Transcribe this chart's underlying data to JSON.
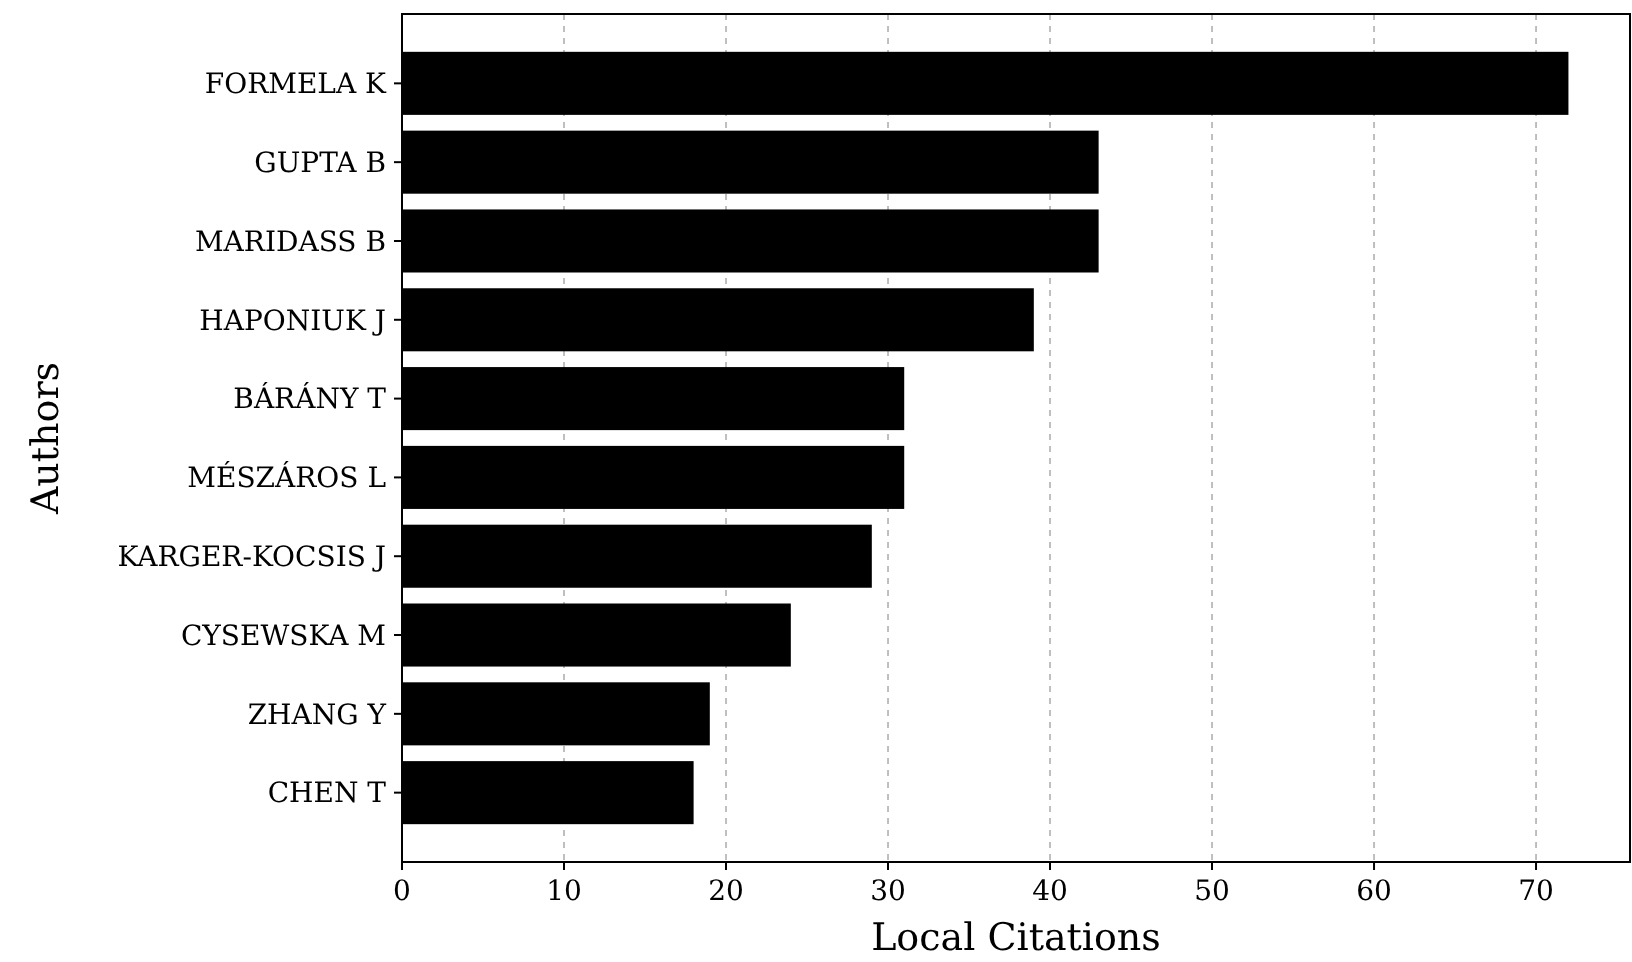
{
  "chart_data": {
    "type": "bar",
    "orientation": "horizontal",
    "xlabel": "Local Citations",
    "ylabel": "Authors",
    "categories": [
      "FORMELA K",
      "GUPTA B",
      "MARIDASS B",
      "HAPONIUK J",
      "BÁRÁNY T",
      "MÉSZÁROS L",
      "KARGER-KOCSIS J",
      "CYSEWSKA M",
      "ZHANG Y",
      "CHEN T"
    ],
    "values": [
      72,
      43,
      43,
      39,
      31,
      31,
      29,
      24,
      19,
      18
    ],
    "color": "#000000",
    "xlim": [
      0,
      75.8
    ],
    "xticks": [
      0,
      10,
      20,
      30,
      40,
      50,
      60,
      70
    ],
    "grid": "x"
  }
}
